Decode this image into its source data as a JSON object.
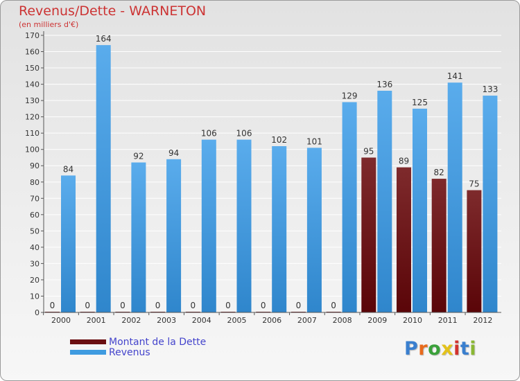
{
  "title": "Revenus/Dette - WARNETON",
  "subtitle": "(en milliers d'€)",
  "brand": {
    "text": "Proxiti",
    "letter_colors": [
      "#3a7fcf",
      "#e86a1c",
      "#3aa13a",
      "#e3c21b",
      "#d2332f",
      "#3a7fcf",
      "#8ab733"
    ]
  },
  "colors": {
    "dette": "#6b0f12",
    "revenus": "#3f9be0",
    "title": "#cc3333",
    "legend_text": "#4444cc"
  },
  "legend": [
    {
      "label": "Montant de la Dette",
      "color": "#6b0f12"
    },
    {
      "label": "Revenus",
      "color": "#3f9be0"
    }
  ],
  "chart_data": {
    "type": "bar",
    "categories": [
      "2000",
      "2001",
      "2002",
      "2003",
      "2004",
      "2005",
      "2006",
      "2007",
      "2008",
      "2009",
      "2010",
      "2011",
      "2012"
    ],
    "series": [
      {
        "name": "Montant de la Dette",
        "values": [
          0,
          0,
          0,
          0,
          0,
          0,
          0,
          0,
          0,
          95,
          89,
          82,
          75
        ]
      },
      {
        "name": "Revenus",
        "values": [
          84,
          164,
          92,
          94,
          106,
          106,
          102,
          101,
          129,
          136,
          125,
          141,
          133
        ]
      }
    ],
    "ylim": [
      0,
      170
    ],
    "yticks": [
      0,
      10,
      20,
      30,
      40,
      50,
      60,
      70,
      80,
      90,
      100,
      110,
      120,
      130,
      140,
      150,
      160,
      170
    ],
    "grid": true,
    "legend_position": "bottom-left"
  }
}
